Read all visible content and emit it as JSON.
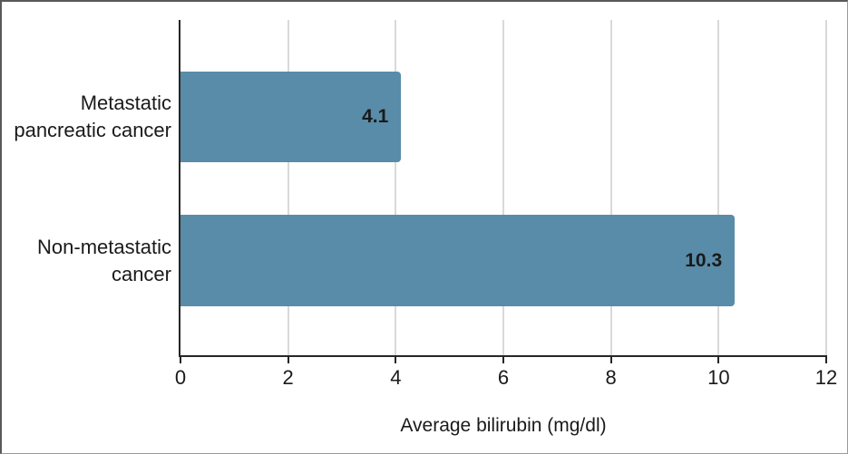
{
  "window": {
    "background": "#ffffff",
    "frame_border_color": "#595959"
  },
  "chart_data": {
    "type": "bar",
    "orientation": "horizontal",
    "title": "",
    "xlabel": "Average bilirubin (mg/dl)",
    "ylabel": "",
    "categories": [
      "Metastatic\npancreatic cancer",
      "Non-metastatic\ncancer"
    ],
    "values": [
      4.1,
      10.3
    ],
    "xlim": [
      0,
      12
    ],
    "x_ticks": [
      0,
      2,
      4,
      6,
      8,
      10,
      12
    ],
    "grid": "vertical-only",
    "legend": "none",
    "bar_color": "#588CA8",
    "gridline_color": "#d9d9d9",
    "axis_color": "#262626",
    "text_color": "#1a1a1a"
  }
}
